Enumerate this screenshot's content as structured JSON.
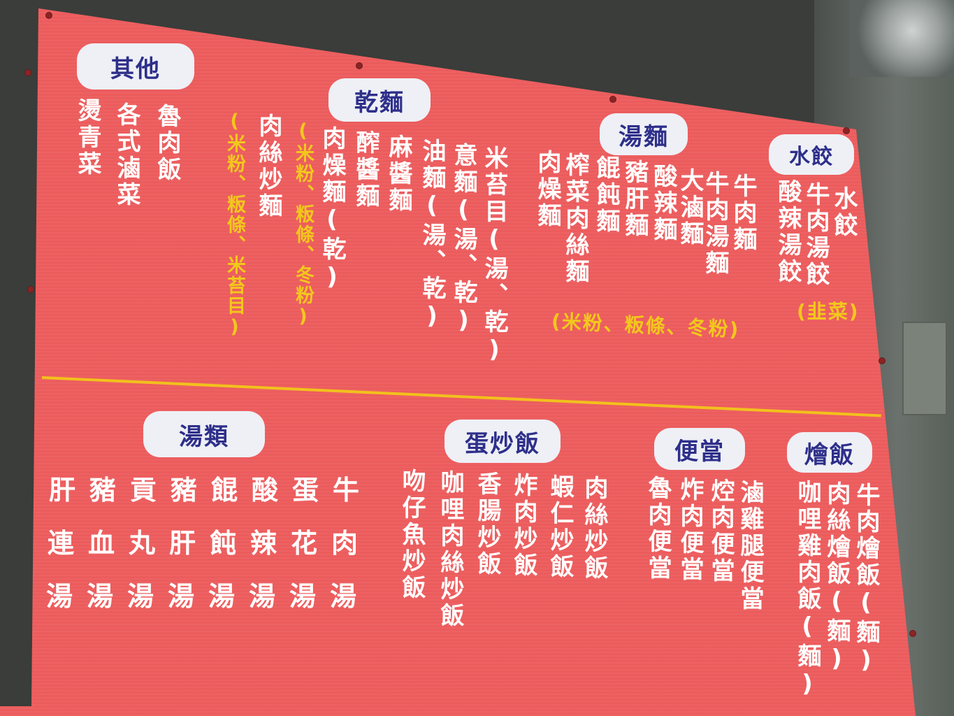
{
  "sections": {
    "other": {
      "title": "其他",
      "items": [
        "魯肉飯",
        "各式滷菜",
        "燙青菜"
      ]
    },
    "dry_noodles": {
      "title": "乾麵",
      "items": [
        "米苔目(湯、乾)",
        "意麵(湯、乾)",
        "油麵(湯、乾)",
        "麻醬麵",
        "醡醬麵",
        "肉燥麵(乾)",
        "肉絲炒麵"
      ],
      "notes": [
        "(米粉、粄條、冬粉)",
        "(米粉、粄條、米苔目)"
      ]
    },
    "soup_noodles": {
      "title": "湯麵",
      "items": [
        "牛肉麵",
        "牛肉湯麵",
        "大滷麵",
        "酸辣麵",
        "豬肝麵",
        "餛飩麵",
        "榨菜肉絲麵",
        "肉燥麵"
      ],
      "note": "(米粉、粄條、冬粉)"
    },
    "dumplings": {
      "title": "水餃",
      "items": [
        "水餃",
        "牛肉湯餃",
        "酸辣湯餃"
      ],
      "note": "(韭菜)"
    },
    "soups": {
      "title": "湯類",
      "rows": [
        "肝豬貢豬餛酸蛋牛",
        "連血丸肝飩辣花肉",
        "湯湯湯湯湯湯湯湯"
      ]
    },
    "egg_fried_rice": {
      "title": "蛋炒飯",
      "items": [
        "肉絲炒飯",
        "蝦仁炒飯",
        "炸肉炒飯",
        "香腸炒飯",
        "咖哩肉絲炒飯",
        "吻仔魚炒飯"
      ]
    },
    "bento": {
      "title": "便當",
      "items": [
        "滷雞腿便當",
        "焢肉便當",
        "炸肉便當",
        "魯肉便當"
      ]
    },
    "braised_rice": {
      "title": "燴飯",
      "items": [
        "牛肉燴飯(麵)",
        "肉絲燴飯(麵)",
        "咖哩雞肉飯(麵)"
      ]
    }
  },
  "colors": {
    "board": "#ec5c5d",
    "pill_bg": "#eef0f6",
    "pill_text": "#2e2f8a",
    "item_text": "#ffffff",
    "note_text": "#f2c81c",
    "divider": "#f2c11c"
  }
}
